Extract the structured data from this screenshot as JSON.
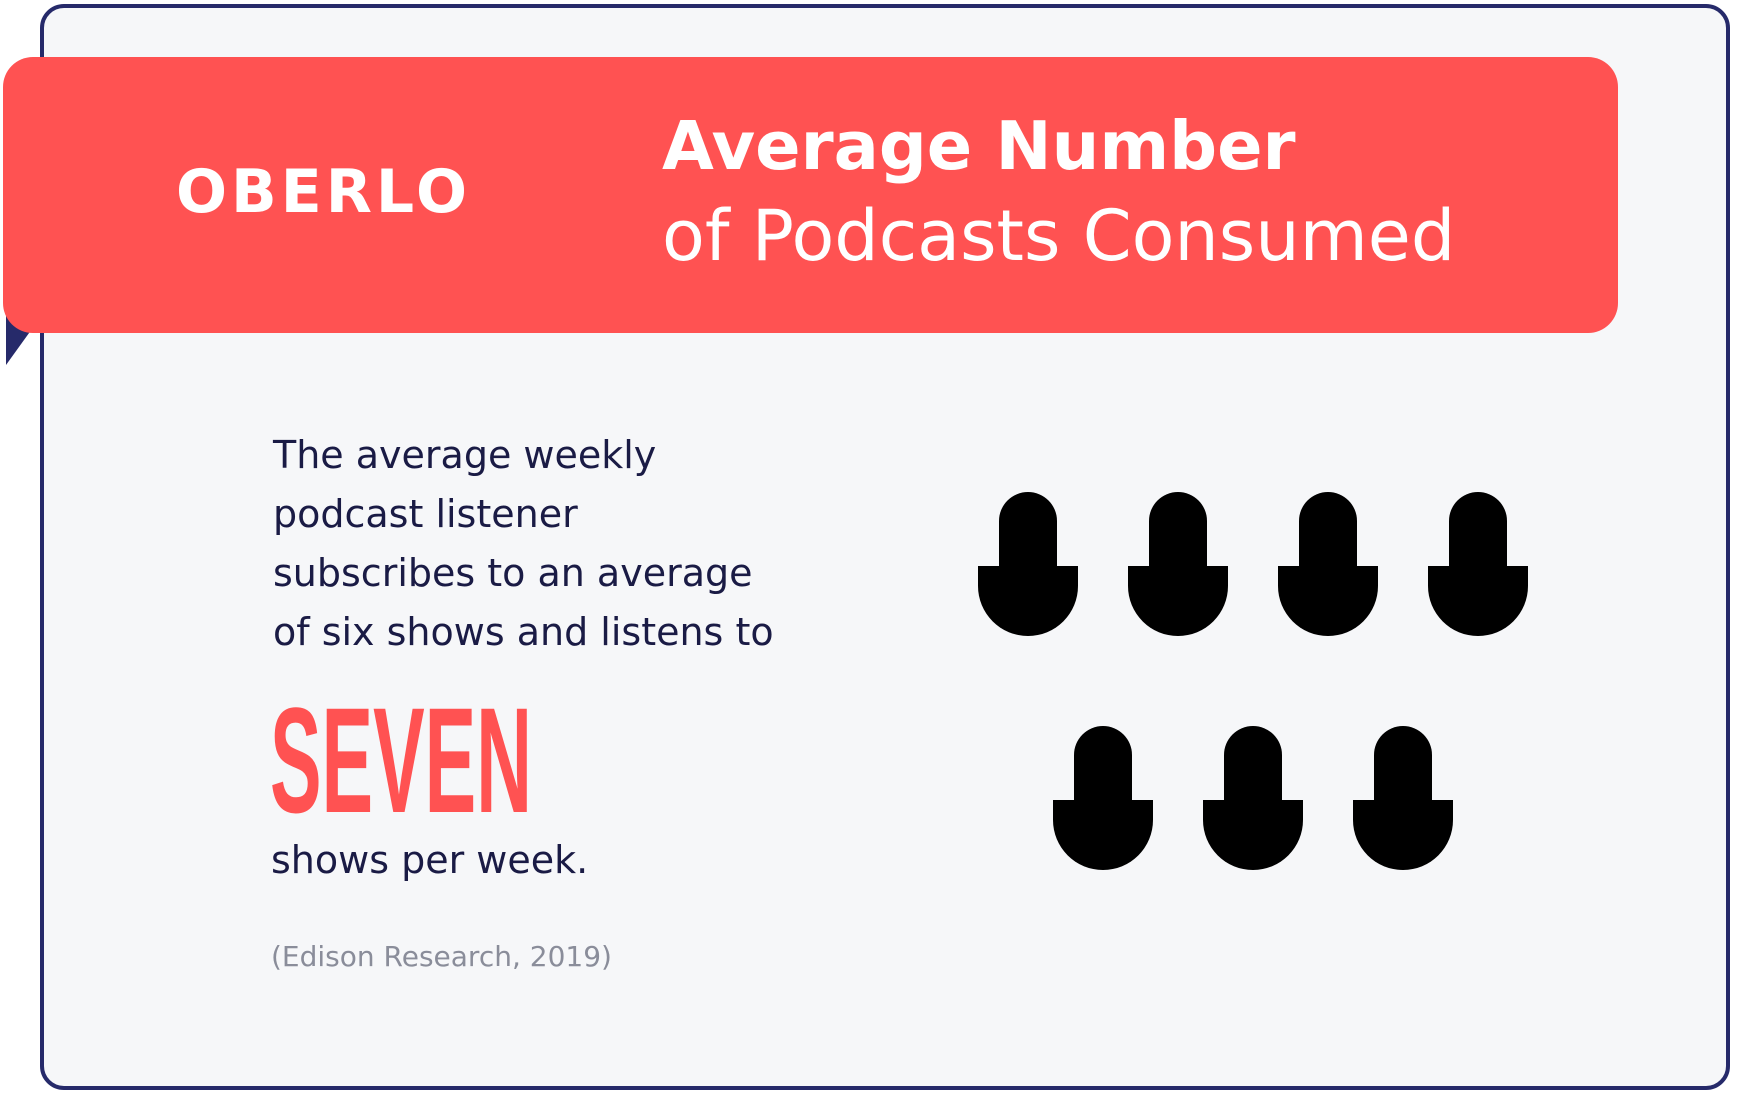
{
  "brand": {
    "logo_text": "OBERLO",
    "accent_color": "#ff5252",
    "ink_color": "#1a1b45",
    "border_color": "#262a6a"
  },
  "header": {
    "title_line1": "Average Number",
    "title_line2": "of Podcasts Consumed"
  },
  "content": {
    "body_lines": [
      "The average weekly",
      "podcast listener",
      "subscribes to an average",
      "of six shows and listens to"
    ],
    "highlight": "SEVEN",
    "after_highlight": "shows per week.",
    "source": "(Edison Research, 2019)"
  },
  "illustration": {
    "icon": "microphone-icon",
    "count": 7,
    "rows": [
      4,
      3
    ]
  }
}
